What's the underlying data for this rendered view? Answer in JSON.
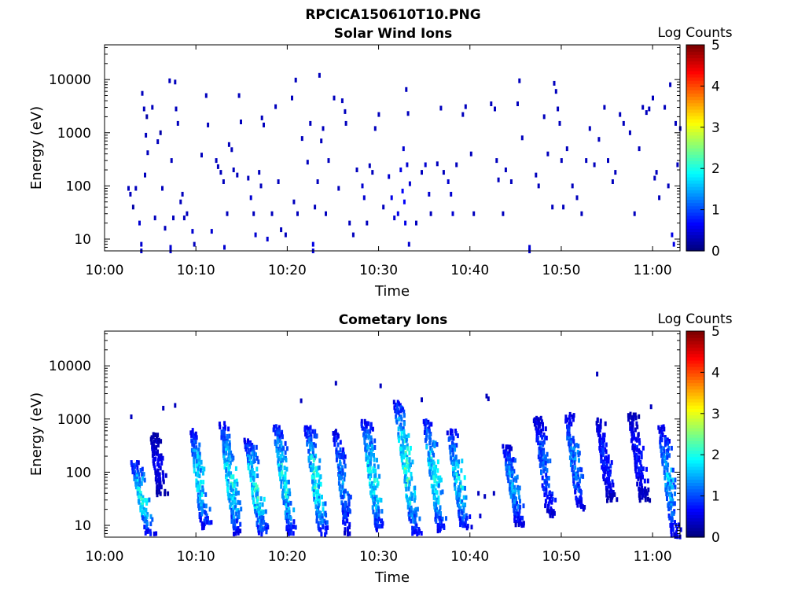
{
  "figure": {
    "title": "RPCICA150610T10.PNG"
  },
  "colorbar": {
    "label": "Log Counts",
    "ticks": [
      "0",
      "1",
      "2",
      "3",
      "4",
      "5"
    ],
    "min": 0,
    "max": 5
  },
  "chart_data": [
    {
      "type": "heatmap",
      "title": "Solar Wind Ions",
      "xlabel": "Time",
      "ylabel": "Energy (eV)",
      "xticks": [
        "10:00",
        "10:10",
        "10:20",
        "10:30",
        "10:40",
        "10:50",
        "11:00"
      ],
      "xlim_minutes": [
        0,
        63
      ],
      "yticks": [
        "10",
        "100",
        "1000",
        "10000"
      ],
      "yscale": "log",
      "ylim": [
        6,
        45000
      ],
      "color_scale": "jet",
      "points": [
        [
          2.5,
          90,
          0.3
        ],
        [
          2.7,
          70,
          0.3
        ],
        [
          3,
          40,
          0.2
        ],
        [
          3.3,
          90,
          0.3
        ],
        [
          3.7,
          20,
          0.4
        ],
        [
          3.9,
          8,
          0.4
        ],
        [
          3.9,
          6,
          0.4
        ],
        [
          4,
          5500,
          0.3
        ],
        [
          4.2,
          2800,
          0.3
        ],
        [
          4.3,
          160,
          0.3
        ],
        [
          4.5,
          2000,
          0.2
        ],
        [
          4.4,
          900,
          0.3
        ],
        [
          4.6,
          420,
          0.3
        ],
        [
          5.1,
          3000,
          0.3
        ],
        [
          5.4,
          25,
          0.3
        ],
        [
          5.7,
          680,
          0.3
        ],
        [
          6,
          1000,
          0.2
        ],
        [
          6.2,
          90,
          0.3
        ],
        [
          6.5,
          16,
          0.3
        ],
        [
          7,
          9500,
          0.3
        ],
        [
          7.2,
          300,
          0.3
        ],
        [
          7.4,
          25,
          0.3
        ],
        [
          7.1,
          7,
          0.4
        ],
        [
          7.1,
          6,
          0.4
        ],
        [
          7.6,
          9000,
          0.3
        ],
        [
          7.7,
          2800,
          0.3
        ],
        [
          7.9,
          1500,
          0.3
        ],
        [
          8.2,
          50,
          0.3
        ],
        [
          8.4,
          70,
          0.3
        ],
        [
          8.6,
          25,
          0.3
        ],
        [
          8.9,
          30,
          0.3
        ],
        [
          9.5,
          14,
          0.4
        ],
        [
          9.7,
          8,
          0.3
        ],
        [
          10.5,
          380,
          0.3
        ],
        [
          11,
          5000,
          0.3
        ],
        [
          11.2,
          1400,
          0.3
        ],
        [
          11.6,
          14,
          0.4
        ],
        [
          12.1,
          300,
          0.3
        ],
        [
          12.3,
          230,
          0.3
        ],
        [
          12.6,
          180,
          0.3
        ],
        [
          12.9,
          120,
          0.3
        ],
        [
          13,
          7,
          0.4
        ],
        [
          13.3,
          30,
          0.3
        ],
        [
          13.5,
          600,
          0.3
        ],
        [
          13.8,
          480,
          0.3
        ],
        [
          14,
          200,
          0.3
        ],
        [
          14.4,
          160,
          0.3
        ],
        [
          14.6,
          5000,
          0.3
        ],
        [
          14.8,
          1600,
          0.3
        ],
        [
          15.6,
          140,
          0.3
        ],
        [
          15.9,
          60,
          0.4
        ],
        [
          16.2,
          30,
          0.3
        ],
        [
          16.4,
          12,
          0.4
        ],
        [
          16.8,
          180,
          0.3
        ],
        [
          17,
          100,
          0.3
        ],
        [
          17.1,
          1900,
          0.3
        ],
        [
          17.3,
          1400,
          0.3
        ],
        [
          17.7,
          10,
          0.4
        ],
        [
          18.2,
          30,
          0.3
        ],
        [
          18.6,
          3100,
          0.3
        ],
        [
          18.9,
          120,
          0.3
        ],
        [
          19.2,
          15,
          0.3
        ],
        [
          19.7,
          12,
          0.3
        ],
        [
          20.4,
          4500,
          0.3
        ],
        [
          20.8,
          9800,
          0.3
        ],
        [
          20.6,
          50,
          0.3
        ],
        [
          21,
          30,
          0.3
        ],
        [
          21.5,
          780,
          0.3
        ],
        [
          22.1,
          280,
          0.3
        ],
        [
          22.4,
          1500,
          0.3
        ],
        [
          22.7,
          8,
          0.5
        ],
        [
          22.7,
          6,
          0.5
        ],
        [
          22.9,
          40,
          0.3
        ],
        [
          23.4,
          12000,
          0.3
        ],
        [
          23.2,
          120,
          0.3
        ],
        [
          23.6,
          700,
          0.3
        ],
        [
          23.8,
          1200,
          0.3
        ],
        [
          24.1,
          30,
          0.3
        ],
        [
          24.4,
          300,
          0.3
        ],
        [
          25,
          4500,
          0.3
        ],
        [
          25.5,
          90,
          0.3
        ],
        [
          25.9,
          4000,
          0.3
        ],
        [
          26.2,
          2500,
          0.3
        ],
        [
          26.3,
          1500,
          0.3
        ],
        [
          26.7,
          20,
          0.3
        ],
        [
          27.1,
          12,
          0.3
        ],
        [
          27.5,
          200,
          0.3
        ],
        [
          28.1,
          100,
          0.4
        ],
        [
          28.3,
          60,
          0.4
        ],
        [
          28.6,
          20,
          0.3
        ],
        [
          28.9,
          240,
          0.3
        ],
        [
          29.2,
          180,
          0.3
        ],
        [
          29.5,
          1200,
          0.3
        ],
        [
          29.9,
          2200,
          0.3
        ],
        [
          30.4,
          40,
          0.3
        ],
        [
          31,
          150,
          0.4
        ],
        [
          31.3,
          60,
          0.5
        ],
        [
          31.6,
          25,
          0.4
        ],
        [
          32,
          30,
          0.5
        ],
        [
          32.3,
          200,
          0.5
        ],
        [
          32.5,
          80,
          0.6
        ],
        [
          32.7,
          50,
          0.6
        ],
        [
          32.8,
          20,
          0.5
        ],
        [
          32.6,
          500,
          0.4
        ],
        [
          33,
          250,
          0.4
        ],
        [
          33.3,
          110,
          0.4
        ],
        [
          33.2,
          8,
          0.4
        ],
        [
          32.9,
          6500,
          0.3
        ],
        [
          33.1,
          2300,
          0.3
        ],
        [
          34,
          20,
          0.3
        ],
        [
          34.6,
          180,
          0.3
        ],
        [
          35,
          250,
          0.4
        ],
        [
          35.4,
          70,
          0.4
        ],
        [
          35.6,
          30,
          0.3
        ],
        [
          36.3,
          260,
          0.3
        ],
        [
          36.7,
          2900,
          0.3
        ],
        [
          37,
          180,
          0.3
        ],
        [
          37.5,
          120,
          0.4
        ],
        [
          37.8,
          70,
          0.4
        ],
        [
          38,
          30,
          0.4
        ],
        [
          38.4,
          250,
          0.3
        ],
        [
          39.1,
          2200,
          0.3
        ],
        [
          39.4,
          3100,
          0.3
        ],
        [
          40,
          400,
          0.3
        ],
        [
          40.3,
          30,
          0.3
        ],
        [
          42.2,
          3500,
          0.3
        ],
        [
          42.6,
          2800,
          0.3
        ],
        [
          42.8,
          300,
          0.3
        ],
        [
          43,
          130,
          0.3
        ],
        [
          43.5,
          30,
          0.3
        ],
        [
          43.8,
          200,
          0.3
        ],
        [
          44.4,
          120,
          0.3
        ],
        [
          45.1,
          3500,
          0.3
        ],
        [
          45.6,
          800,
          0.3
        ],
        [
          45.3,
          9500,
          0.3
        ],
        [
          46.4,
          7,
          0.4
        ],
        [
          46.4,
          6,
          0.4
        ],
        [
          47.1,
          160,
          0.3
        ],
        [
          47.4,
          100,
          0.3
        ],
        [
          48,
          2000,
          0.3
        ],
        [
          48.4,
          400,
          0.3
        ],
        [
          48.9,
          40,
          0.3
        ],
        [
          49.1,
          8500,
          0.3
        ],
        [
          49.3,
          6000,
          0.3
        ],
        [
          49.5,
          2800,
          0.3
        ],
        [
          49.7,
          1500,
          0.3
        ],
        [
          49.9,
          300,
          0.3
        ],
        [
          50.1,
          40,
          0.3
        ],
        [
          50.5,
          500,
          0.3
        ],
        [
          51.1,
          100,
          0.3
        ],
        [
          51.6,
          60,
          0.3
        ],
        [
          52.1,
          30,
          0.3
        ],
        [
          52.6,
          300,
          0.3
        ],
        [
          53,
          1200,
          0.3
        ],
        [
          53.5,
          250,
          0.3
        ],
        [
          54,
          750,
          0.3
        ],
        [
          54.6,
          3000,
          0.3
        ],
        [
          55,
          300,
          0.3
        ],
        [
          55.5,
          120,
          0.3
        ],
        [
          55.8,
          180,
          0.3
        ],
        [
          56.3,
          2200,
          0.3
        ],
        [
          56.7,
          1500,
          0.3
        ],
        [
          57.4,
          1000,
          0.3
        ],
        [
          57.9,
          30,
          0.3
        ],
        [
          58.4,
          500,
          0.3
        ],
        [
          58.8,
          3000,
          0.3
        ],
        [
          59.2,
          2400,
          0.3
        ],
        [
          59.5,
          2800,
          0.3
        ],
        [
          59.9,
          4500,
          0.3
        ],
        [
          60.1,
          140,
          0.3
        ],
        [
          60.3,
          180,
          0.3
        ],
        [
          60.6,
          60,
          0.3
        ],
        [
          61.2,
          3000,
          0.3
        ],
        [
          61.6,
          100,
          0.3
        ],
        [
          61.8,
          8000,
          0.3
        ],
        [
          62,
          12,
          0.5
        ],
        [
          62.2,
          8,
          0.5
        ],
        [
          62.4,
          1500,
          0.3
        ],
        [
          62.6,
          250,
          0.3
        ],
        [
          62.9,
          1200,
          0.3
        ]
      ]
    },
    {
      "type": "heatmap",
      "title": "Cometary Ions",
      "xlabel": "Time",
      "ylabel": "Energy (eV)",
      "xticks": [
        "10:00",
        "10:10",
        "10:20",
        "10:30",
        "10:40",
        "10:50",
        "11:00"
      ],
      "xlim_minutes": [
        0,
        63
      ],
      "yticks": [
        "10",
        "100",
        "1000",
        "10000"
      ],
      "yscale": "log",
      "ylim": [
        6,
        45000
      ],
      "color_scale": "jet",
      "streaks": [
        {
          "t": 3.2,
          "e_high": 150,
          "e_low": 7,
          "slope": 1.6,
          "peak": 2.0
        },
        {
          "t": 5.3,
          "e_high": 500,
          "e_low": 35,
          "slope": 0.8,
          "peak": 0.6
        },
        {
          "t": 9.6,
          "e_high": 600,
          "e_low": 9,
          "slope": 1.3,
          "peak": 1.9
        },
        {
          "t": 12.9,
          "e_high": 800,
          "e_low": 7,
          "slope": 1.5,
          "peak": 2.0
        },
        {
          "t": 15.6,
          "e_high": 400,
          "e_low": 6,
          "slope": 1.6,
          "peak": 2.1
        },
        {
          "t": 18.8,
          "e_high": 700,
          "e_low": 7,
          "slope": 1.5,
          "peak": 2.0
        },
        {
          "t": 22.2,
          "e_high": 700,
          "e_low": 6,
          "slope": 1.6,
          "peak": 2.0
        },
        {
          "t": 25.3,
          "e_high": 600,
          "e_low": 7,
          "slope": 1.3,
          "peak": 1.4
        },
        {
          "t": 28.4,
          "e_high": 900,
          "e_low": 8,
          "slope": 1.6,
          "peak": 2.0
        },
        {
          "t": 32.0,
          "e_high": 2000,
          "e_low": 7,
          "slope": 1.9,
          "peak": 2.2
        },
        {
          "t": 35.2,
          "e_high": 900,
          "e_low": 8,
          "slope": 1.5,
          "peak": 2.0
        },
        {
          "t": 37.8,
          "e_high": 600,
          "e_low": 9,
          "slope": 1.5,
          "peak": 1.9
        },
        {
          "t": 43.9,
          "e_high": 300,
          "e_low": 10,
          "slope": 1.4,
          "peak": 1.5
        },
        {
          "t": 47.3,
          "e_high": 1000,
          "e_low": 15,
          "slope": 1.4,
          "peak": 1.2
        },
        {
          "t": 50.6,
          "e_high": 1200,
          "e_low": 20,
          "slope": 1.5,
          "peak": 1.4
        },
        {
          "t": 54.0,
          "e_high": 1000,
          "e_low": 30,
          "slope": 1.3,
          "peak": 0.9
        },
        {
          "t": 57.6,
          "e_high": 1200,
          "e_low": 30,
          "slope": 1.3,
          "peak": 0.8
        },
        {
          "t": 60.9,
          "e_high": 700,
          "e_low": 6,
          "slope": 1.5,
          "peak": 1.6
        }
      ],
      "points": [
        [
          2.8,
          1100,
          0.3
        ],
        [
          6.3,
          1600,
          0.3
        ],
        [
          7.6,
          1800,
          0.3
        ],
        [
          21.4,
          2200,
          0.3
        ],
        [
          23.1,
          480,
          0.3
        ],
        [
          25.2,
          4700,
          0.3
        ],
        [
          30.1,
          4200,
          0.3
        ],
        [
          34.6,
          2300,
          0.3
        ],
        [
          41.7,
          2700,
          0.3
        ],
        [
          41.9,
          2400,
          0.3
        ],
        [
          53.8,
          7000,
          0.3
        ],
        [
          59.7,
          1700,
          0.3
        ],
        [
          40.8,
          40,
          0.3
        ],
        [
          41.5,
          35,
          0.3
        ],
        [
          42.5,
          40,
          0.3
        ],
        [
          41,
          15,
          0.4
        ]
      ]
    }
  ]
}
